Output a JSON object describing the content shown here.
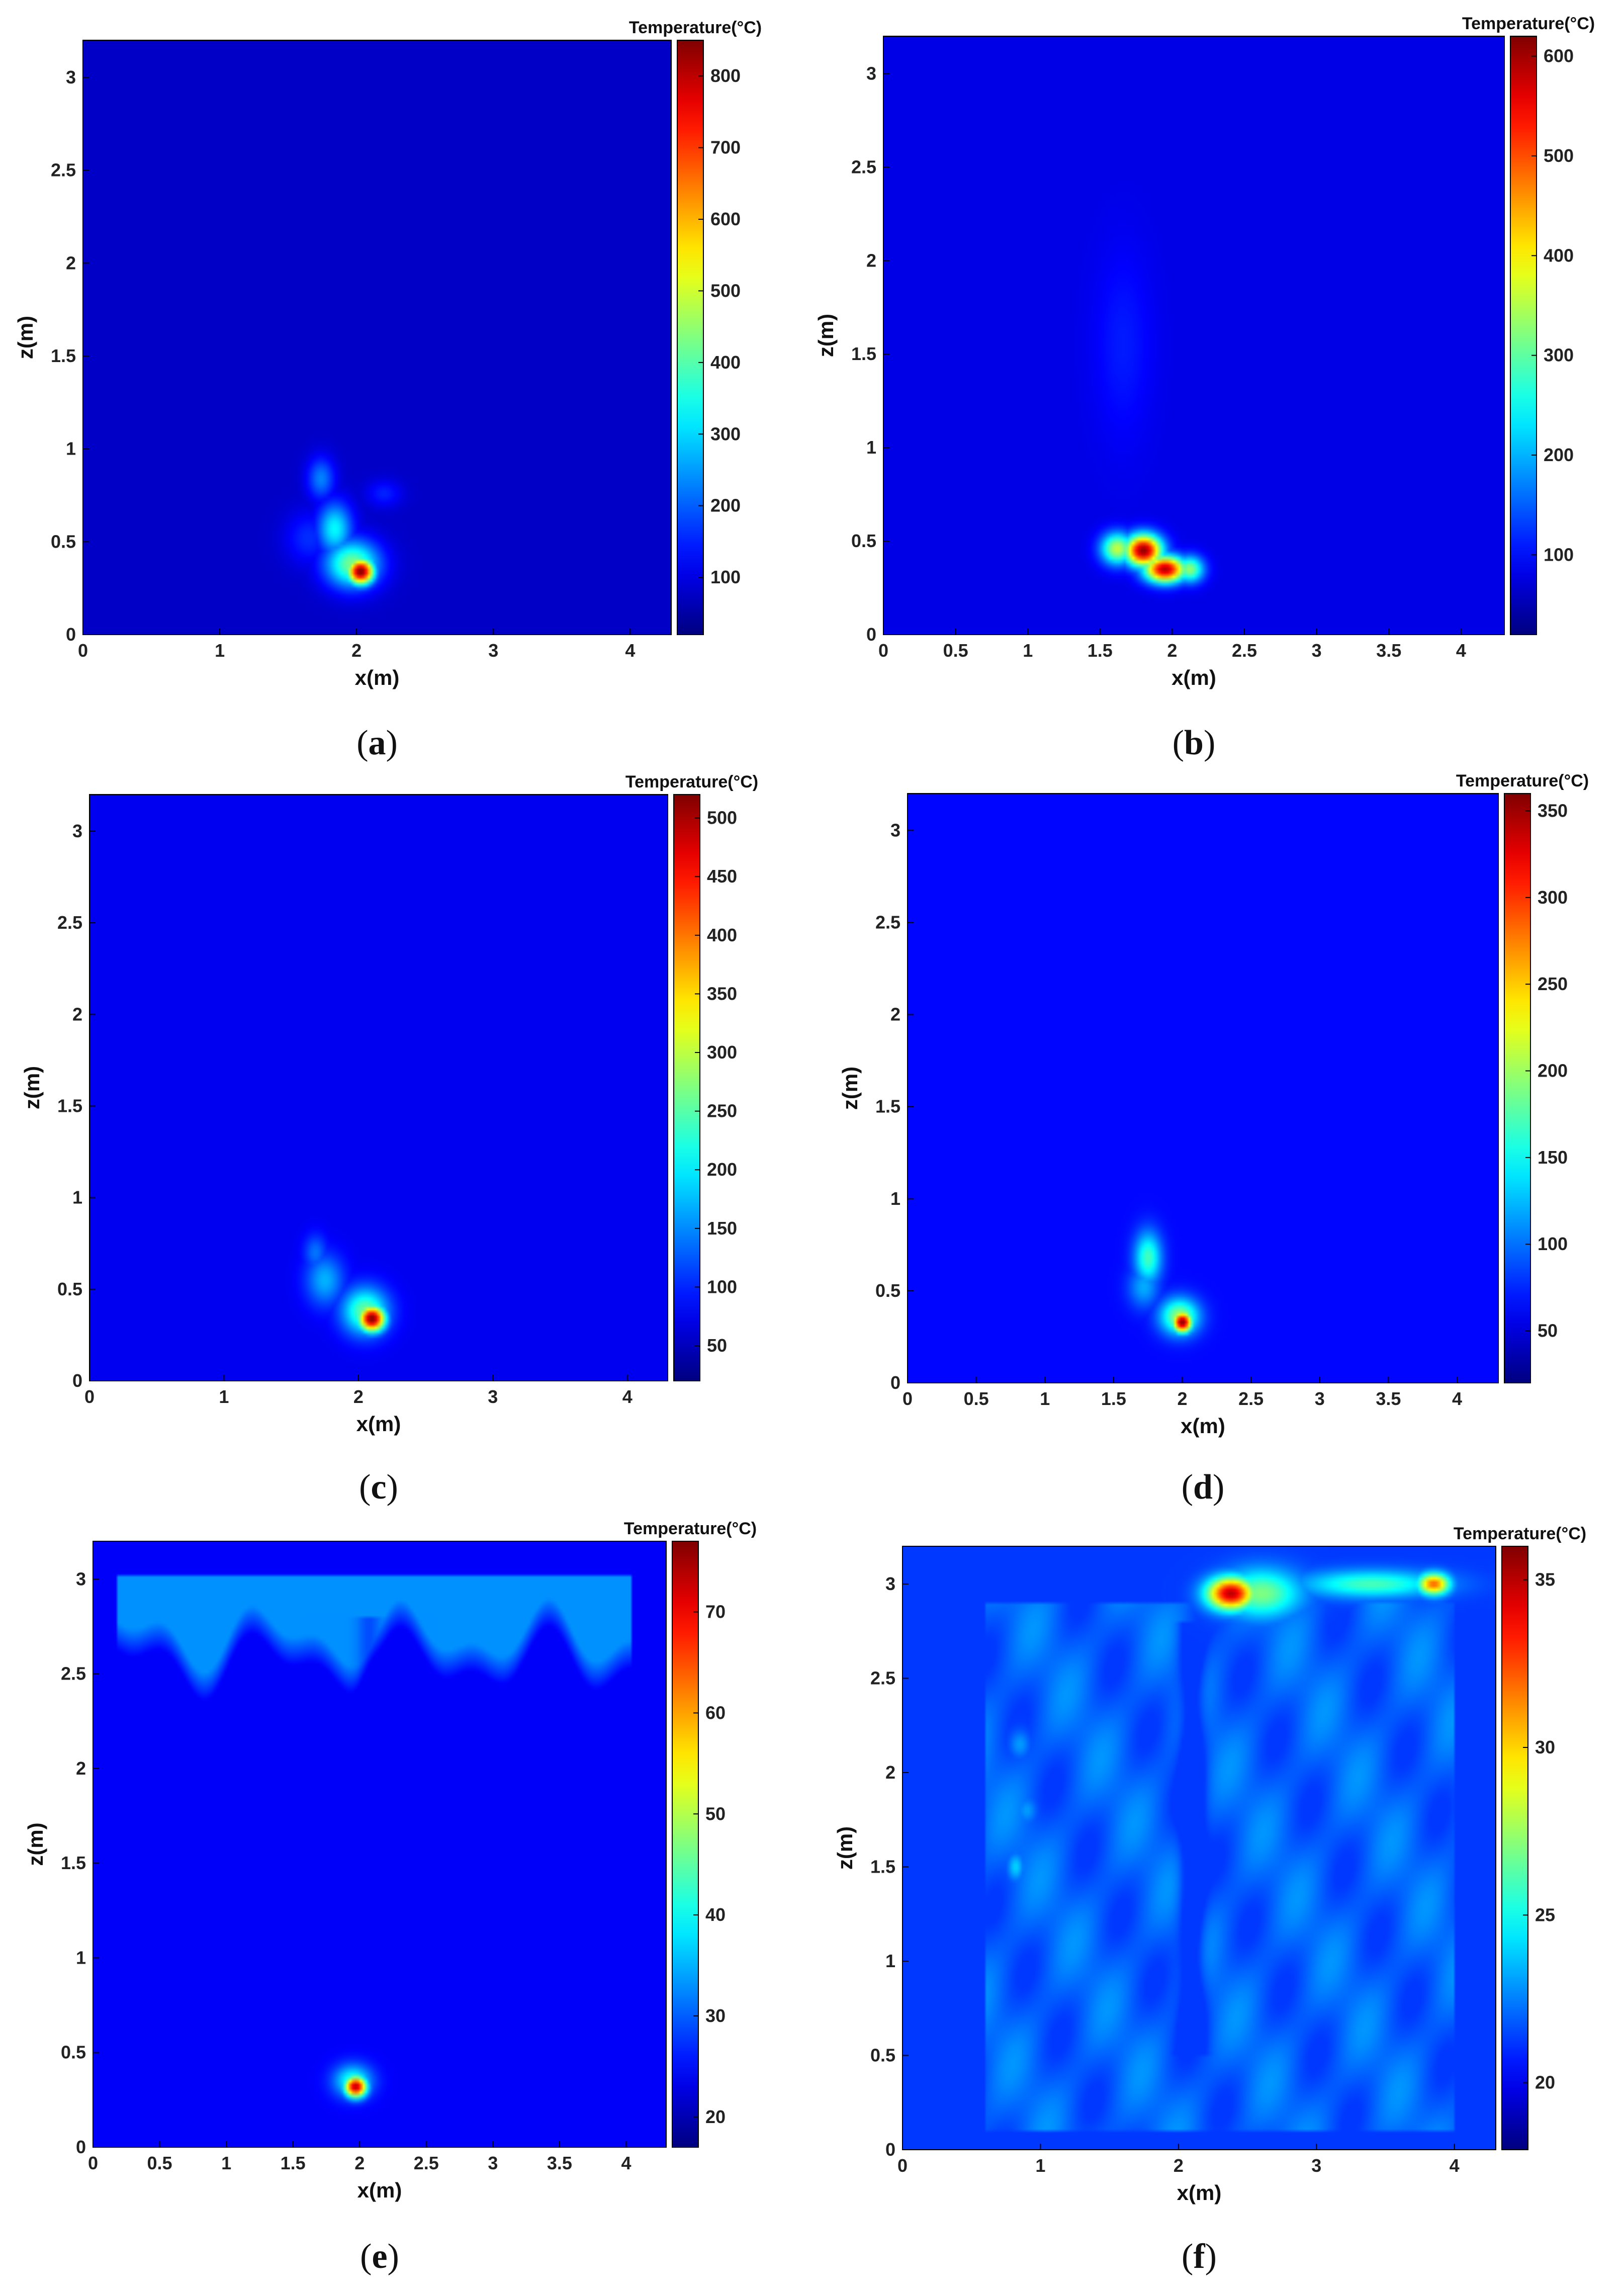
{
  "chart_data": [
    {
      "type": "heatmap",
      "panel_label": "a",
      "xlabel": "x(m)",
      "ylabel": "z(m)",
      "xlim": [
        0,
        4.3
      ],
      "ylim": [
        0,
        3.2
      ],
      "xticks": [
        0,
        1,
        2,
        3,
        4
      ],
      "yticks": [
        0,
        0.5,
        1,
        1.5,
        2,
        2.5,
        3
      ],
      "colorbar": {
        "title": "Temperature(°C)",
        "min": 20,
        "max": 850,
        "ticks": [
          100,
          200,
          300,
          400,
          500,
          600,
          700,
          800
        ]
      },
      "background": 0.07,
      "hotspots": [
        {
          "x": 2.03,
          "z": 0.34,
          "sx": 0.07,
          "sz": 0.05,
          "t": 850
        },
        {
          "x": 1.97,
          "z": 0.38,
          "sx": 0.14,
          "sz": 0.09,
          "t": 430
        },
        {
          "x": 1.84,
          "z": 0.57,
          "sx": 0.09,
          "sz": 0.1,
          "t": 330
        },
        {
          "x": 1.74,
          "z": 0.84,
          "sx": 0.07,
          "sz": 0.08,
          "t": 230
        },
        {
          "x": 2.2,
          "z": 0.76,
          "sx": 0.09,
          "sz": 0.05,
          "t": 150
        },
        {
          "x": 1.65,
          "z": 0.52,
          "sx": 0.12,
          "sz": 0.1,
          "t": 160
        }
      ]
    },
    {
      "type": "heatmap",
      "panel_label": "b",
      "xlabel": "x(m)",
      "ylabel": "z(m)",
      "xlim": [
        0,
        4.3
      ],
      "ylim": [
        0,
        3.2
      ],
      "xticks": [
        0,
        0.5,
        1,
        1.5,
        2,
        2.5,
        3,
        3.5,
        4
      ],
      "yticks": [
        0,
        0.5,
        1,
        1.5,
        2,
        2.5,
        3
      ],
      "colorbar": {
        "title": "Temperature(°C)",
        "min": 20,
        "max": 620,
        "ticks": [
          100,
          200,
          300,
          400,
          500,
          600
        ]
      },
      "background": 0.1,
      "hotspots": [
        {
          "x": 1.8,
          "z": 0.45,
          "sx": 0.09,
          "sz": 0.06,
          "t": 610
        },
        {
          "x": 1.95,
          "z": 0.35,
          "sx": 0.1,
          "sz": 0.05,
          "t": 590
        },
        {
          "x": 1.62,
          "z": 0.46,
          "sx": 0.08,
          "sz": 0.06,
          "t": 360
        },
        {
          "x": 2.12,
          "z": 0.35,
          "sx": 0.07,
          "sz": 0.05,
          "t": 330
        },
        {
          "x": 1.66,
          "z": 1.55,
          "sx": 0.14,
          "sz": 0.35,
          "t": 110
        },
        {
          "x": 1.2,
          "z": 0.8,
          "sx": 0.3,
          "sz": 0.25,
          "t": 75
        }
      ],
      "plume": {
        "x": 2.1,
        "z0": 0.55,
        "z1": 2.8,
        "w": 0.05,
        "dt": -18
      }
    },
    {
      "type": "heatmap",
      "panel_label": "c",
      "xlabel": "x(m)",
      "ylabel": "z(m)",
      "xlim": [
        0,
        4.3
      ],
      "ylim": [
        0,
        3.2
      ],
      "xticks": [
        0,
        1,
        2,
        3,
        4
      ],
      "yticks": [
        0,
        0.5,
        1,
        1.5,
        2,
        2.5,
        3
      ],
      "colorbar": {
        "title": "Temperature(°C)",
        "min": 20,
        "max": 520,
        "ticks": [
          50,
          100,
          150,
          200,
          250,
          300,
          350,
          400,
          450,
          500
        ]
      },
      "background": 0.11,
      "hotspots": [
        {
          "x": 2.1,
          "z": 0.34,
          "sx": 0.07,
          "sz": 0.05,
          "t": 520
        },
        {
          "x": 2.05,
          "z": 0.38,
          "sx": 0.12,
          "sz": 0.09,
          "t": 260
        },
        {
          "x": 1.75,
          "z": 0.55,
          "sx": 0.1,
          "sz": 0.1,
          "t": 170
        },
        {
          "x": 1.68,
          "z": 0.7,
          "sx": 0.06,
          "sz": 0.07,
          "t": 140
        }
      ],
      "plume": {
        "x": 2.07,
        "z0": 0.6,
        "z1": 2.8,
        "w": 0.05,
        "dt": -15
      }
    },
    {
      "type": "heatmap",
      "panel_label": "d",
      "xlabel": "x(m)",
      "ylabel": "z(m)",
      "xlim": [
        0,
        4.3
      ],
      "ylim": [
        0,
        3.2
      ],
      "xticks": [
        0,
        0.5,
        1,
        1.5,
        2,
        2.5,
        3,
        3.5,
        4
      ],
      "yticks": [
        0,
        0.5,
        1,
        1.5,
        2,
        2.5,
        3
      ],
      "colorbar": {
        "title": "Temperature(°C)",
        "min": 20,
        "max": 360,
        "ticks": [
          50,
          100,
          150,
          200,
          250,
          300,
          350
        ]
      },
      "background": 0.13,
      "hotspots": [
        {
          "x": 2.0,
          "z": 0.33,
          "sx": 0.05,
          "sz": 0.04,
          "t": 360
        },
        {
          "x": 1.98,
          "z": 0.36,
          "sx": 0.1,
          "sz": 0.07,
          "t": 200
        },
        {
          "x": 1.75,
          "z": 0.68,
          "sx": 0.07,
          "sz": 0.1,
          "t": 170
        },
        {
          "x": 1.72,
          "z": 0.52,
          "sx": 0.08,
          "sz": 0.08,
          "t": 120
        }
      ],
      "plume": {
        "x": 2.1,
        "z0": 0.75,
        "z1": 2.8,
        "w": 0.05,
        "dt": -10
      }
    },
    {
      "type": "heatmap",
      "panel_label": "e",
      "xlabel": "x(m)",
      "ylabel": "z(m)",
      "xlim": [
        0,
        4.3
      ],
      "ylim": [
        0,
        3.2
      ],
      "xticks": [
        0,
        0.5,
        1,
        1.5,
        2,
        2.5,
        3,
        3.5,
        4
      ],
      "yticks": [
        0,
        0.5,
        1,
        1.5,
        2,
        2.5,
        3
      ],
      "colorbar": {
        "title": "Temperature(°C)",
        "min": 17,
        "max": 77,
        "ticks": [
          20,
          30,
          40,
          50,
          60,
          70
        ]
      },
      "background": 0.12,
      "hotspots": [
        {
          "x": 1.97,
          "z": 0.32,
          "sx": 0.06,
          "sz": 0.04,
          "t": 74
        },
        {
          "x": 1.95,
          "z": 0.35,
          "sx": 0.1,
          "sz": 0.06,
          "t": 42
        }
      ],
      "ceiling": {
        "z0": 2.55,
        "z1": 3.03,
        "t": 33
      },
      "plume": {
        "x": 2.07,
        "z0": 0.5,
        "z1": 2.8,
        "w": 0.06,
        "dt": -4
      }
    },
    {
      "type": "heatmap",
      "panel_label": "f",
      "xlabel": "x(m)",
      "ylabel": "z(m)",
      "xlim": [
        0,
        4.3
      ],
      "ylim": [
        0,
        3.2
      ],
      "xticks": [
        0,
        1,
        2,
        3,
        4
      ],
      "yticks": [
        0,
        0.5,
        1,
        1.5,
        2,
        2.5,
        3
      ],
      "colorbar": {
        "title": "Temperature(°C)",
        "min": 18,
        "max": 36,
        "ticks": [
          20,
          25,
          30,
          35
        ]
      },
      "background": 0.18,
      "hotspots": [
        {
          "x": 2.38,
          "z": 2.95,
          "sx": 0.12,
          "sz": 0.06,
          "t": 35
        },
        {
          "x": 2.6,
          "z": 2.95,
          "sx": 0.2,
          "sz": 0.09,
          "t": 27
        },
        {
          "x": 3.85,
          "z": 3.0,
          "sx": 0.08,
          "sz": 0.04,
          "t": 32
        },
        {
          "x": 3.4,
          "z": 3.0,
          "sx": 0.35,
          "sz": 0.05,
          "t": 26
        },
        {
          "x": 0.82,
          "z": 1.5,
          "sx": 0.04,
          "sz": 0.05,
          "t": 24
        },
        {
          "x": 0.85,
          "z": 2.15,
          "sx": 0.05,
          "sz": 0.05,
          "t": 23
        },
        {
          "x": 0.9,
          "z": 1.8,
          "sx": 0.05,
          "sz": 0.05,
          "t": 23
        }
      ],
      "body": {
        "x0": 0.6,
        "x1": 4.0,
        "z0": 0.1,
        "z1": 2.9,
        "t": 22
      },
      "plume": {
        "x": 2.1,
        "z0": 0.5,
        "z1": 2.8,
        "w": 0.06,
        "dt": -2
      }
    }
  ]
}
